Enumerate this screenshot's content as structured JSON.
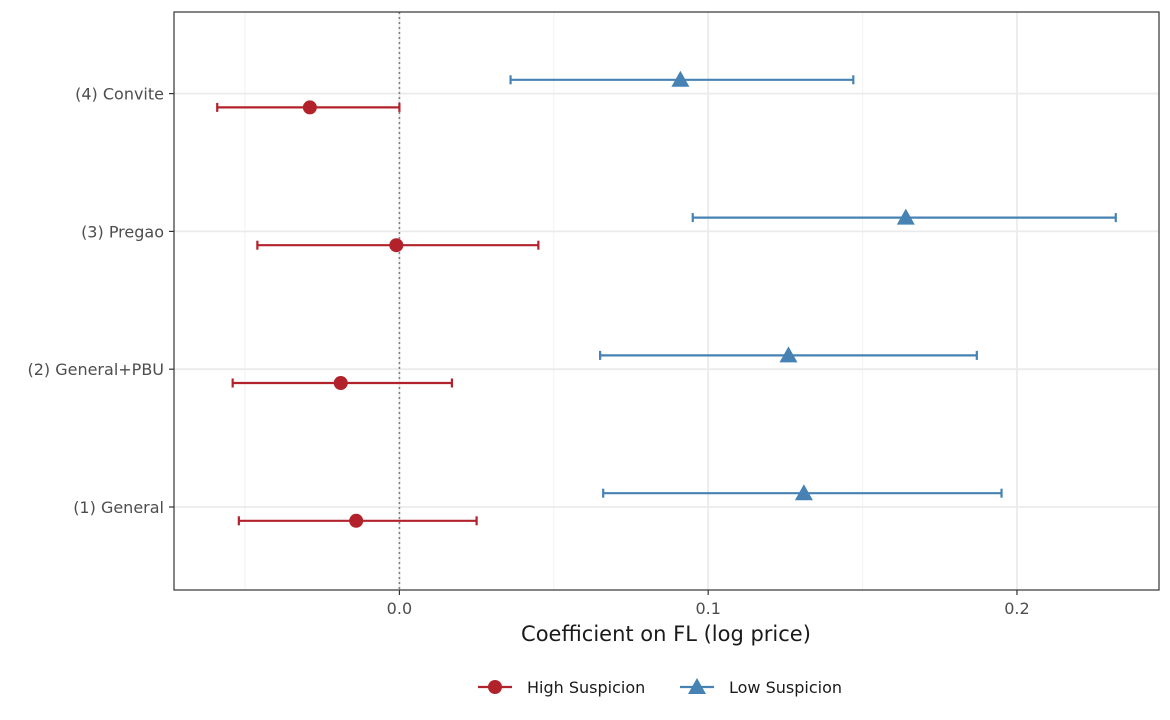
{
  "chart_data": {
    "type": "scatter",
    "subtype": "coefficient-plot",
    "title": "",
    "xlabel": "Coefficient on FL (log price)",
    "ylabel": "",
    "xlim": [
      -0.073,
      0.246
    ],
    "x_ticks": [
      0.0,
      0.1,
      0.2
    ],
    "x_tick_labels": [
      "0.0",
      "0.1",
      "0.2"
    ],
    "reference_line_x": 0.0,
    "grid": true,
    "legend_position": "bottom",
    "categories": [
      "(1) General",
      "(2) General+PBU",
      "(3) Pregao",
      "(4) Convite"
    ],
    "series": [
      {
        "name": "High Suspicion",
        "color": "#B2222B",
        "marker": "circle",
        "estimates": [
          -0.014,
          -0.019,
          -0.001,
          -0.029
        ],
        "ci_low": [
          -0.052,
          -0.054,
          -0.046,
          -0.059
        ],
        "ci_high": [
          0.025,
          0.017,
          0.045,
          0.0
        ]
      },
      {
        "name": "Low Suspicion",
        "color": "#4682B4",
        "marker": "triangle",
        "estimates": [
          0.131,
          0.126,
          0.164,
          0.091
        ],
        "ci_low": [
          0.066,
          0.065,
          0.095,
          0.036
        ],
        "ci_high": [
          0.195,
          0.187,
          0.232,
          0.147
        ]
      }
    ]
  }
}
